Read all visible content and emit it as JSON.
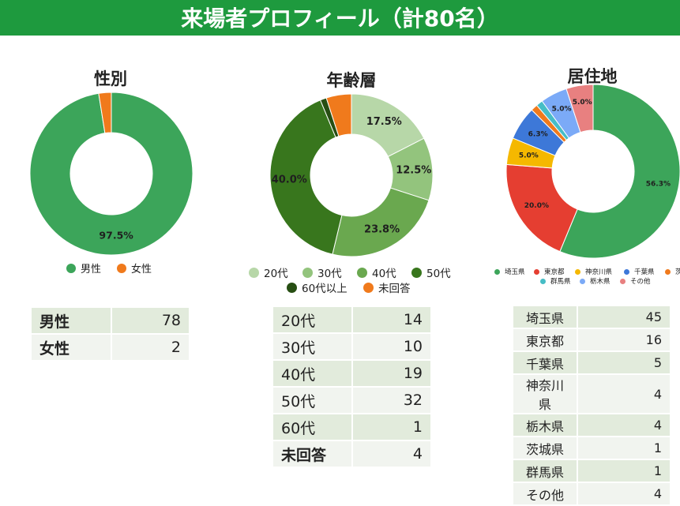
{
  "header": {
    "title": "来場者プロフィール（計80名）"
  },
  "charts": {
    "gender": {
      "title": "性別",
      "chart_data": {
        "type": "pie",
        "title": "性別",
        "series": [
          {
            "name": "男性",
            "value": 78,
            "pct": "97.5%",
            "color": "#3ca55a",
            "show_label": true
          },
          {
            "name": "女性",
            "value": 2,
            "pct": "2.5%",
            "color": "#f07a1c",
            "show_label": false
          }
        ]
      },
      "legend": [
        "男性",
        "女性"
      ],
      "table": [
        {
          "label": "男性",
          "value": "78"
        },
        {
          "label": "女性",
          "value": "2"
        }
      ]
    },
    "age": {
      "title": "年齢層",
      "chart_data": {
        "type": "pie",
        "title": "年齢層",
        "series": [
          {
            "name": "20代",
            "value": 14,
            "pct": "17.5%",
            "color": "#b7d7a8",
            "show_label": true
          },
          {
            "name": "30代",
            "value": 10,
            "pct": "12.5%",
            "color": "#93c47d",
            "show_label": true
          },
          {
            "name": "40代",
            "value": 19,
            "pct": "23.8%",
            "color": "#6aa84f",
            "show_label": true
          },
          {
            "name": "50代",
            "value": 32,
            "pct": "40.0%",
            "color": "#38761d",
            "show_label": true
          },
          {
            "name": "60代以上",
            "value": 1,
            "pct": "1.3%",
            "color": "#274e13",
            "show_label": false
          },
          {
            "name": "未回答",
            "value": 4,
            "pct": "5.0%",
            "color": "#f07a1c",
            "show_label": false
          }
        ]
      },
      "legend_row1": [
        "20代",
        "30代",
        "40代",
        "50代"
      ],
      "legend_row2": [
        "60代以上",
        "未回答"
      ],
      "table": [
        {
          "label": "20代",
          "value": "14"
        },
        {
          "label": "30代",
          "value": "10"
        },
        {
          "label": "40代",
          "value": "19"
        },
        {
          "label": "50代",
          "value": "32"
        },
        {
          "label": "60代",
          "value": "1"
        },
        {
          "label": "未回答",
          "value": "4"
        }
      ]
    },
    "residence": {
      "title": "居住地",
      "chart_data": {
        "type": "pie",
        "title": "居住地",
        "series": [
          {
            "name": "埼玉県",
            "value": 45,
            "pct": "56.3%",
            "color": "#3ca55a",
            "show_label": true
          },
          {
            "name": "東京都",
            "value": 16,
            "pct": "20.0%",
            "color": "#e53e31",
            "show_label": true
          },
          {
            "name": "神奈川県",
            "value": 4,
            "pct": "5.0%",
            "color": "#f5b800",
            "show_label": true
          },
          {
            "name": "千葉県",
            "value": 5,
            "pct": "6.3%",
            "color": "#3d78d8",
            "show_label": true
          },
          {
            "name": "茨城県",
            "value": 1,
            "pct": "1.3%",
            "color": "#f07a1c",
            "show_label": false
          },
          {
            "name": "群馬県",
            "value": 1,
            "pct": "1.3%",
            "color": "#46bdc6",
            "show_label": false
          },
          {
            "name": "栃木県",
            "value": 4,
            "pct": "5.0%",
            "color": "#7baaf7",
            "show_label": true
          },
          {
            "name": "その他",
            "value": 4,
            "pct": "5.0%",
            "color": "#e88080",
            "show_label": true
          }
        ]
      },
      "legend_row1": [
        "埼玉県",
        "東京都",
        "神奈川県",
        "千葉県",
        "茨"
      ],
      "legend_row2": [
        "群馬県",
        "栃木県",
        "その他"
      ],
      "table": [
        {
          "label": "埼玉県",
          "value": "45"
        },
        {
          "label": "東京都",
          "value": "16"
        },
        {
          "label": "千葉県",
          "value": "5"
        },
        {
          "label": "神奈川県",
          "value": "4"
        },
        {
          "label": "栃木県",
          "value": "4"
        },
        {
          "label": "茨城県",
          "value": "1"
        },
        {
          "label": "群馬県",
          "value": "1"
        },
        {
          "label": "その他",
          "value": "4"
        }
      ]
    }
  }
}
